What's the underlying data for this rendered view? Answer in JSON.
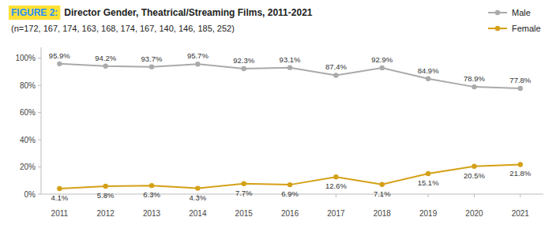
{
  "chart_data": {
    "type": "line",
    "title_label": "FIGURE 2:",
    "title": "Director Gender, Theatrical/Streaming Films, 2011-2021",
    "subtitle": "(n=172, 167, 174, 163, 168, 174, 167, 140, 146, 185, 252)",
    "x": [
      2011,
      2012,
      2013,
      2014,
      2015,
      2016,
      2017,
      2018,
      2019,
      2020,
      2021
    ],
    "xlim": [
      2010.6,
      2021.5
    ],
    "xticks": [
      2011,
      2012,
      2013,
      2014,
      2015,
      2016,
      2017,
      2018,
      2019,
      2020,
      2021
    ],
    "ylim": [
      0,
      108
    ],
    "yticks": [
      {
        "value": 0,
        "label": "0%"
      },
      {
        "value": 20,
        "label": "20%"
      },
      {
        "value": 40,
        "label": "40%"
      },
      {
        "value": 60,
        "label": "60%"
      },
      {
        "value": 80,
        "label": "80%"
      },
      {
        "value": 100,
        "label": "100%"
      }
    ],
    "series": [
      {
        "name": "Male",
        "color": "#AAAAAA",
        "marker": "circle",
        "line_style": "solid",
        "values": [
          95.9,
          94.2,
          93.7,
          95.7,
          92.3,
          93.1,
          87.4,
          92.9,
          84.9,
          78.9,
          77.8
        ],
        "value_labels": [
          "95.9%",
          "94.2%",
          "93.7%",
          "95.7%",
          "92.3%",
          "93.1%",
          "87.4%",
          "92.9%",
          "84.9%",
          "78.9%",
          "77.8%"
        ]
      },
      {
        "name": "Female",
        "color": "#D4A017",
        "marker": "circle",
        "line_style": "solid",
        "values": [
          4.1,
          5.8,
          6.3,
          4.3,
          7.7,
          6.9,
          12.6,
          7.1,
          15.1,
          20.5,
          21.8
        ],
        "value_labels": [
          "4.1%",
          "5.8%",
          "6.3%",
          "4.3%",
          "7.7%",
          "6.9%",
          "12.6%",
          "7.1%",
          "15.1%",
          "20.5%",
          "21.8%"
        ]
      }
    ],
    "data_labels": true,
    "legend": "top-right",
    "grid": false
  }
}
